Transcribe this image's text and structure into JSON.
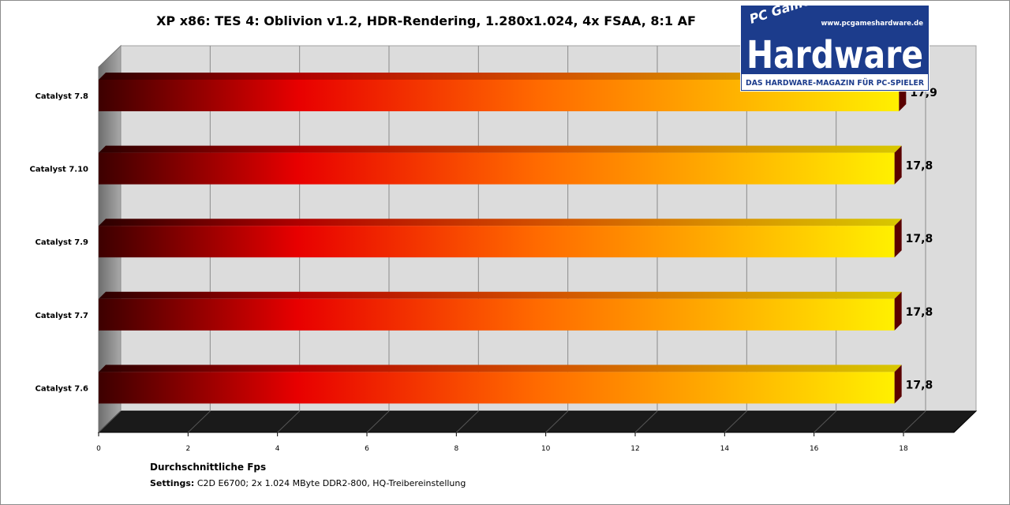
{
  "chart_data": {
    "type": "bar",
    "orientation": "horizontal",
    "title": "XP x86: TES 4: Oblivion v1.2, HDR-Rendering, 1.280x1.024,  4x FSAA, 8:1 AF",
    "categories": [
      "Catalyst 7.8",
      "Catalyst 7.10",
      "Catalyst 7.9",
      "Catalyst 7.7",
      "Catalyst 7.6"
    ],
    "values": [
      17.9,
      17.8,
      17.8,
      17.8,
      17.8
    ],
    "value_labels": [
      "17,9",
      "17,8",
      "17,8",
      "17,8",
      "17,8"
    ],
    "xlabel": "Durchschnittliche  Fps",
    "xlim": [
      0,
      18
    ],
    "xticks": [
      "0",
      "2",
      "4",
      "6",
      "8",
      "10",
      "12",
      "14",
      "16",
      "18"
    ],
    "grid": true,
    "style": "3d",
    "colors": {
      "gradient_start": "#3d0000",
      "gradient_mid1": "#e80000",
      "gradient_mid2": "#ff6a00",
      "gradient_mid3": "#ffb400",
      "gradient_end": "#fff000",
      "wall": "#dcdcdc",
      "floor": "#1a1a1a",
      "side": "#8a8a8a"
    }
  },
  "footer": {
    "settings_label": "Settings:",
    "settings_text": " C2D E6700; 2x 1.024 MByte DDR2-800, HQ-Treibereinstellung"
  },
  "logo": {
    "brand_small": "PC Games",
    "brand_big": "Hardware",
    "url": "www.pcgameshardware.de",
    "tagline": "DAS HARDWARE-MAGAZIN FÜR PC-SPIELER",
    "colors": {
      "background": "#1c3c8c",
      "text": "#ffffff"
    }
  }
}
